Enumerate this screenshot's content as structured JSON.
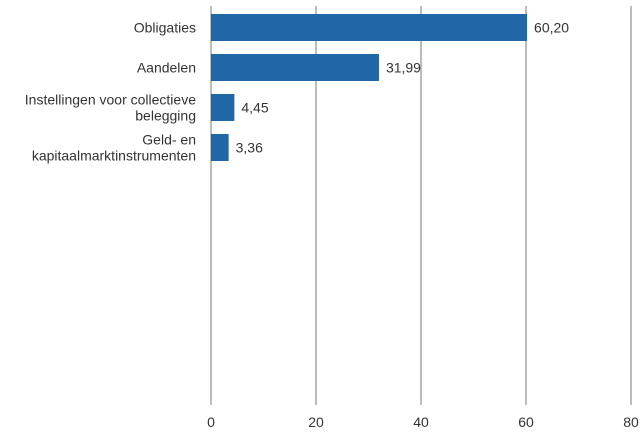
{
  "chart_data": {
    "type": "bar",
    "orientation": "horizontal",
    "categories": [
      [
        "Obligaties"
      ],
      [
        "Aandelen"
      ],
      [
        "Instellingen voor collectieve",
        "belegging"
      ],
      [
        "Geld- en",
        "kapitaalmarktinstrumenten"
      ]
    ],
    "values": [
      60.2,
      31.99,
      4.45,
      3.36
    ],
    "value_labels": [
      "60,20",
      "31,99",
      "4,45",
      "3,36"
    ],
    "title": "",
    "xlabel": "",
    "ylabel": "",
    "xlim": [
      0,
      80
    ],
    "x_ticks": [
      0,
      20,
      40,
      60,
      80
    ],
    "x_tick_labels": [
      "0",
      "20",
      "40",
      "60",
      "80"
    ],
    "grid": "vertical",
    "bar_color": "#1f67a7",
    "grid_color": "#a6a6a6"
  }
}
